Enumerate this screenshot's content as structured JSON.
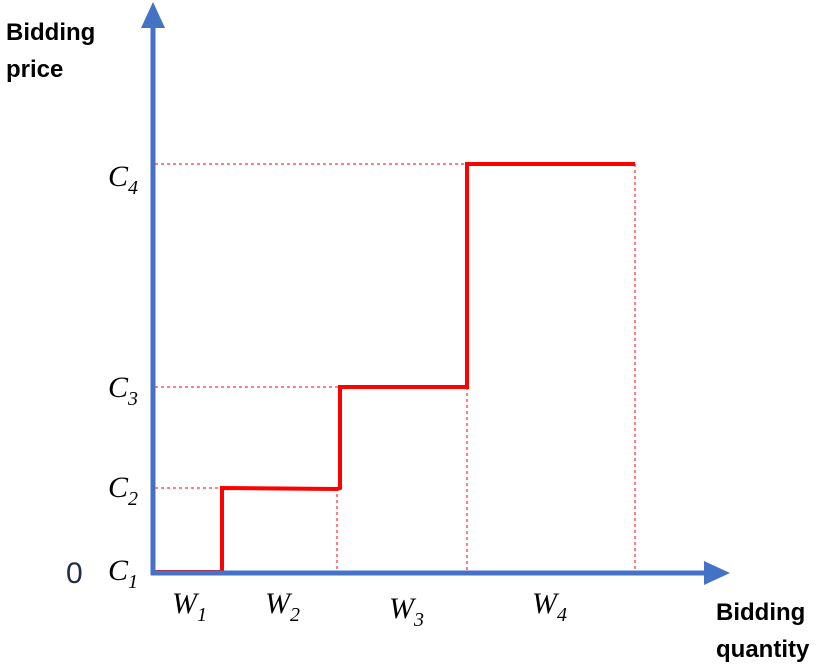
{
  "colors": {
    "axis": "#4472C4",
    "step_curve": "#FF0000",
    "guide_lines": "#FF0000",
    "text": "#000000",
    "origin": "#1F2D4D"
  },
  "axes": {
    "y_title_line1": "Bidding",
    "y_title_line2": "price",
    "x_title_line1": "Bidding",
    "x_title_line2": "quantity",
    "origin_label": "0"
  },
  "price_levels": [
    {
      "base": "C",
      "sub": "1"
    },
    {
      "base": "C",
      "sub": "2"
    },
    {
      "base": "C",
      "sub": "3"
    },
    {
      "base": "C",
      "sub": "4"
    }
  ],
  "quantity_blocks": [
    {
      "base": "W",
      "sub": "1"
    },
    {
      "base": "W",
      "sub": "2"
    },
    {
      "base": "W",
      "sub": "3"
    },
    {
      "base": "W",
      "sub": "4"
    }
  ]
}
